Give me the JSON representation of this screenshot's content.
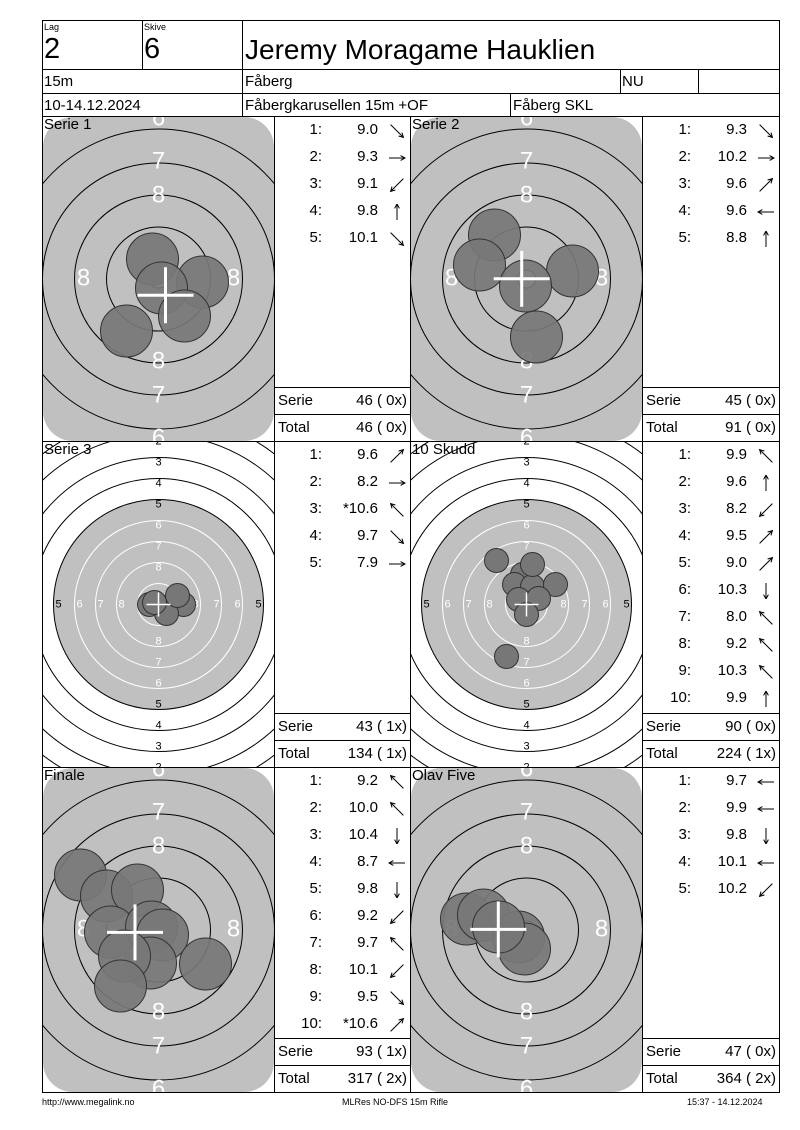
{
  "header": {
    "lag_label": "Lag",
    "lag_value": "2",
    "skive_label": "Skive",
    "skive_value": "6",
    "shooter": "Jeremy Moragame Hauklien",
    "distance": "15m",
    "club": "Fåberg",
    "class": "NU",
    "dates": "10-14.12.2024",
    "event": "Fåbergkarusellen 15m +OF",
    "organizer": "Fåberg SKL"
  },
  "panels": [
    {
      "title": "Serie 1",
      "target": "big",
      "shots": [
        {
          "no": "1:",
          "value": "9.0",
          "dir": "down-right"
        },
        {
          "no": "2:",
          "value": "9.3",
          "dir": "right"
        },
        {
          "no": "3:",
          "value": "9.1",
          "dir": "down-left"
        },
        {
          "no": "4:",
          "value": "9.8",
          "dir": "up"
        },
        {
          "no": "5:",
          "value": "10.1",
          "dir": "down-right"
        }
      ],
      "serie_label": "Serie",
      "serie_value": "46 ( 0x)",
      "total_label": "Total",
      "total_value": "46 ( 0x)"
    },
    {
      "title": "Serie 2",
      "target": "big",
      "shots": [
        {
          "no": "1:",
          "value": "9.3",
          "dir": "down-right"
        },
        {
          "no": "2:",
          "value": "10.2",
          "dir": "right"
        },
        {
          "no": "3:",
          "value": "9.6",
          "dir": "up-right"
        },
        {
          "no": "4:",
          "value": "9.6",
          "dir": "left"
        },
        {
          "no": "5:",
          "value": "8.8",
          "dir": "up"
        }
      ],
      "serie_label": "Serie",
      "serie_value": "45 ( 0x)",
      "total_label": "Total",
      "total_value": "91 ( 0x)"
    },
    {
      "title": "Serie 3",
      "target": "small",
      "shots": [
        {
          "no": "1:",
          "value": "9.6",
          "dir": "up-right"
        },
        {
          "no": "2:",
          "value": "8.2",
          "dir": "right"
        },
        {
          "no": "3:",
          "value": "*10.6",
          "dir": "up-left"
        },
        {
          "no": "4:",
          "value": "9.7",
          "dir": "down-right"
        },
        {
          "no": "5:",
          "value": "7.9",
          "dir": "right"
        }
      ],
      "serie_label": "Serie",
      "serie_value": "43 ( 1x)",
      "total_label": "Total",
      "total_value": "134 ( 1x)"
    },
    {
      "title": "10 Skudd",
      "target": "small",
      "shots": [
        {
          "no": "1:",
          "value": "9.9",
          "dir": "up-left"
        },
        {
          "no": "2:",
          "value": "9.6",
          "dir": "up"
        },
        {
          "no": "3:",
          "value": "8.2",
          "dir": "down-left"
        },
        {
          "no": "4:",
          "value": "9.5",
          "dir": "up-right"
        },
        {
          "no": "5:",
          "value": "9.0",
          "dir": "up-right"
        },
        {
          "no": "6:",
          "value": "10.3",
          "dir": "down"
        },
        {
          "no": "7:",
          "value": "8.0",
          "dir": "up-left"
        },
        {
          "no": "8:",
          "value": "9.2",
          "dir": "up-left"
        },
        {
          "no": "9:",
          "value": "10.3",
          "dir": "up-left"
        },
        {
          "no": "10:",
          "value": "9.9",
          "dir": "up"
        }
      ],
      "serie_label": "Serie",
      "serie_value": "90 ( 0x)",
      "total_label": "Total",
      "total_value": "224 ( 1x)"
    },
    {
      "title": "Finale",
      "target": "big",
      "shots": [
        {
          "no": "1:",
          "value": "9.2",
          "dir": "up-left"
        },
        {
          "no": "2:",
          "value": "10.0",
          "dir": "up-left"
        },
        {
          "no": "3:",
          "value": "10.4",
          "dir": "down"
        },
        {
          "no": "4:",
          "value": "8.7",
          "dir": "left"
        },
        {
          "no": "5:",
          "value": "9.8",
          "dir": "down"
        },
        {
          "no": "6:",
          "value": "9.2",
          "dir": "down-left"
        },
        {
          "no": "7:",
          "value": "9.7",
          "dir": "up-left"
        },
        {
          "no": "8:",
          "value": "10.1",
          "dir": "down-left"
        },
        {
          "no": "9:",
          "value": "9.5",
          "dir": "down-right"
        },
        {
          "no": "10:",
          "value": "*10.6",
          "dir": "up-right"
        }
      ],
      "serie_label": "Serie",
      "serie_value": "93 ( 1x)",
      "total_label": "Total",
      "total_value": "317 ( 2x)"
    },
    {
      "title": "Olav Five",
      "target": "big",
      "shots": [
        {
          "no": "1:",
          "value": "9.7",
          "dir": "left"
        },
        {
          "no": "2:",
          "value": "9.9",
          "dir": "left"
        },
        {
          "no": "3:",
          "value": "9.8",
          "dir": "down"
        },
        {
          "no": "4:",
          "value": "10.1",
          "dir": "left"
        },
        {
          "no": "5:",
          "value": "10.2",
          "dir": "down-left"
        }
      ],
      "serie_label": "Serie",
      "serie_value": "47 ( 0x)",
      "total_label": "Total",
      "total_value": "364 ( 2x)"
    }
  ],
  "footer": {
    "left": "http://www.megalink.no",
    "center": "MLRes NO-DFS 15m Rifle",
    "right": "15:37 - 14.12.2024"
  },
  "colors": {
    "target_grey": "#c0c0c0",
    "hole_fill": "#777777"
  }
}
